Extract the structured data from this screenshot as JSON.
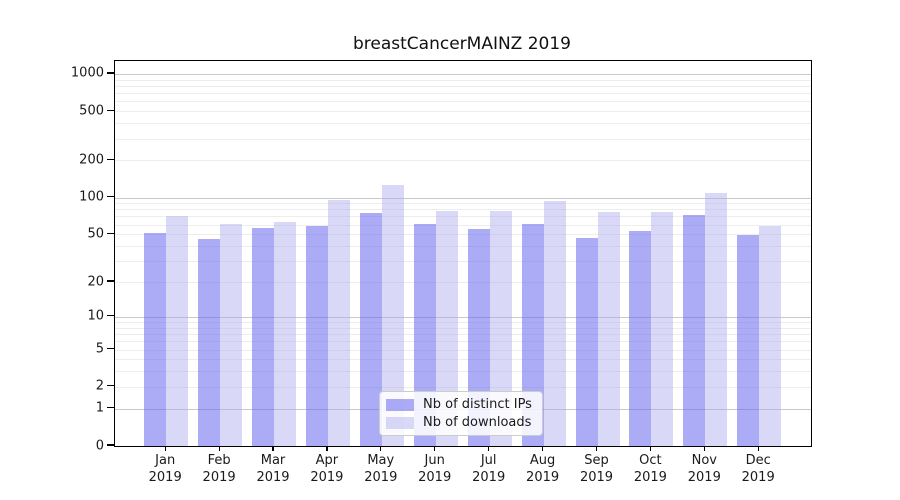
{
  "title": "breastCancerMAINZ 2019",
  "chart_data": {
    "type": "bar",
    "title": "breastCancerMAINZ 2019",
    "xlabel": "",
    "ylabel": "",
    "categories": [
      "Jan 2019",
      "Feb 2019",
      "Mar 2019",
      "Apr 2019",
      "May 2019",
      "Jun 2019",
      "Jul 2019",
      "Aug 2019",
      "Sep 2019",
      "Oct 2019",
      "Nov 2019",
      "Dec 2019"
    ],
    "months": [
      "Jan",
      "Feb",
      "Mar",
      "Apr",
      "May",
      "Jun",
      "Jul",
      "Aug",
      "Sep",
      "Oct",
      "Nov",
      "Dec"
    ],
    "year": "2019",
    "series": [
      {
        "name": "Nb of distinct IPs",
        "swatch_color": "#aaaaf0",
        "fill": "rgba(102,102,238,0.55)",
        "values": [
          51,
          46,
          56,
          58,
          75,
          61,
          55,
          61,
          47,
          53,
          72,
          49
        ]
      },
      {
        "name": "Nb of downloads",
        "swatch_color": "#d9d9f7",
        "fill": "rgba(170,170,238,0.45)",
        "values": [
          71,
          61,
          63,
          95,
          126,
          78,
          77,
          93,
          76,
          76,
          108,
          59
        ]
      }
    ],
    "yscale": "log1p",
    "ylim": [
      0,
      1272
    ],
    "y_ticks": [
      0,
      1,
      2,
      5,
      10,
      20,
      50,
      100,
      200,
      500,
      1000
    ],
    "y_major_gridlines": [
      1,
      10,
      100,
      1000
    ],
    "y_minor_gridlines": [
      2,
      3,
      4,
      5,
      6,
      7,
      8,
      9,
      20,
      30,
      40,
      50,
      60,
      70,
      80,
      90,
      200,
      300,
      400,
      500,
      600,
      700,
      800,
      900
    ],
    "grid": true,
    "legend_position": "inside bottom-center",
    "colors": {
      "major_grid": "#c9c9c9",
      "minor_grid": "#ededed",
      "spine": "#000000",
      "text": "#1a1a1a"
    }
  }
}
